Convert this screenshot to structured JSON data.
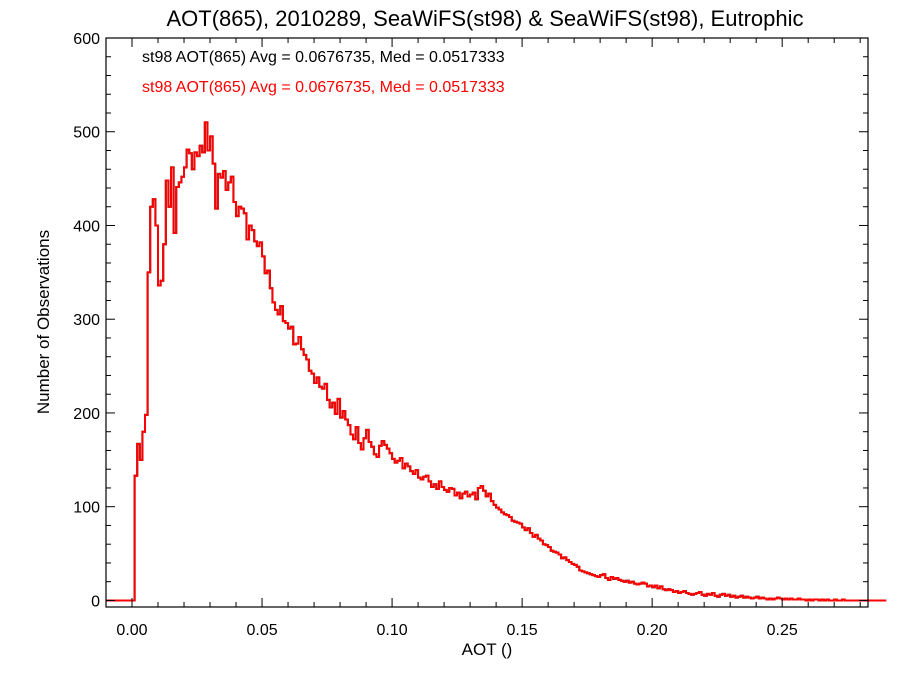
{
  "chart_data": {
    "type": "histogram",
    "title": "AOT(865), 2010289, SeaWiFS(st98) & SeaWiFS(st98), Eutrophic",
    "xlabel": "AOT ()",
    "ylabel": "Number of Observations",
    "xlim": [
      -0.01,
      0.283
    ],
    "ylim": [
      -7,
      600
    ],
    "xticks": [
      0.0,
      0.05,
      0.1,
      0.15,
      0.2,
      0.25
    ],
    "xtick_labels": [
      "0.00",
      "0.05",
      "0.10",
      "0.15",
      "0.20",
      "0.25"
    ],
    "yticks": [
      0,
      100,
      200,
      300,
      400,
      500,
      600
    ],
    "ytick_labels": [
      "0",
      "100",
      "200",
      "300",
      "400",
      "500",
      "600"
    ],
    "grid": false,
    "legend_position": "top-left",
    "bin_start": 0.001,
    "bin_width": 0.001,
    "series": [
      {
        "name": "st98",
        "label": "st98 AOT(865) Avg = 0.0676735, Med = 0.0517333",
        "color": "#000000",
        "values": [
          133,
          167,
          150,
          180,
          198,
          350,
          420,
          428,
          400,
          336,
          341,
          380,
          448,
          420,
          462,
          392,
          441,
          446,
          452,
          462,
          481,
          477,
          460,
          478,
          474,
          485,
          478,
          510,
          480,
          495,
          466,
          418,
          455,
          451,
          458,
          438,
          446,
          452,
          425,
          410,
          420,
          418,
          413,
          385,
          400,
          395,
          383,
          378,
          382,
          367,
          349,
          352,
          333,
          318,
          310,
          305,
          314,
          298,
          296,
          290,
          292,
          273,
          274,
          281,
          268,
          262,
          257,
          245,
          242,
          232,
          238,
          228,
          226,
          231,
          214,
          206,
          211,
          199,
          215,
          195,
          202,
          193,
          187,
          177,
          172,
          185,
          168,
          161,
          173,
          182,
          169,
          164,
          156,
          153,
          165,
          170,
          166,
          162,
          157,
          151,
          147,
          149,
          152,
          141,
          146,
          143,
          138,
          135,
          139,
          131,
          129,
          132,
          133,
          127,
          121,
          124,
          119,
          127,
          121,
          118,
          116,
          120,
          119,
          112,
          115,
          109,
          114,
          116,
          111,
          113,
          115,
          108,
          120,
          122,
          117,
          111,
          114,
          106,
          102,
          99,
          97,
          94,
          92,
          91,
          89,
          85,
          84,
          83,
          82,
          78,
          75,
          77,
          72,
          68,
          70,
          66,
          64,
          60,
          59,
          57,
          53,
          52,
          51,
          49,
          45,
          46,
          43,
          41,
          39,
          38,
          36,
          32,
          31,
          30,
          29,
          28,
          27,
          26,
          25,
          27,
          28,
          24,
          22,
          25,
          23,
          24,
          22,
          21,
          20,
          21,
          19,
          20,
          18,
          17,
          18,
          19,
          18,
          15,
          16,
          14,
          16,
          13,
          15,
          12,
          11,
          12,
          11,
          9,
          10,
          8,
          9,
          10,
          8,
          7,
          6,
          7,
          8,
          9,
          6,
          5,
          7,
          6,
          8,
          5,
          4,
          6,
          7,
          5,
          6,
          4,
          5,
          3,
          4,
          5,
          3,
          4,
          3,
          2,
          3,
          4,
          2,
          3,
          2,
          1,
          2,
          1,
          2,
          3,
          2,
          1,
          2,
          1,
          2,
          1,
          1,
          2,
          1,
          1,
          0,
          1,
          0,
          1,
          1,
          0,
          1,
          0,
          1,
          0,
          0,
          1,
          0,
          0,
          1,
          0,
          0,
          0,
          0,
          0,
          0,
          0,
          0,
          0,
          0,
          0,
          0,
          0,
          0,
          0,
          0,
          0
        ]
      },
      {
        "name": "st98",
        "label": "st98 AOT(865) Avg = 0.0676735, Med = 0.0517333",
        "color": "#ff0000",
        "values": [
          133,
          167,
          150,
          180,
          198,
          350,
          420,
          428,
          400,
          336,
          341,
          380,
          448,
          420,
          462,
          392,
          441,
          446,
          452,
          462,
          481,
          477,
          460,
          478,
          474,
          485,
          478,
          510,
          480,
          495,
          466,
          418,
          455,
          451,
          458,
          438,
          446,
          452,
          425,
          410,
          420,
          418,
          413,
          385,
          400,
          395,
          383,
          378,
          382,
          367,
          349,
          352,
          333,
          318,
          310,
          305,
          314,
          298,
          296,
          290,
          292,
          273,
          274,
          281,
          268,
          262,
          257,
          245,
          242,
          232,
          238,
          228,
          226,
          231,
          214,
          206,
          211,
          199,
          215,
          195,
          202,
          193,
          187,
          177,
          172,
          185,
          168,
          161,
          173,
          182,
          169,
          164,
          156,
          153,
          165,
          170,
          166,
          162,
          157,
          151,
          147,
          149,
          152,
          141,
          146,
          143,
          138,
          135,
          139,
          131,
          129,
          132,
          133,
          127,
          121,
          124,
          119,
          127,
          121,
          118,
          116,
          120,
          119,
          112,
          115,
          109,
          114,
          116,
          111,
          113,
          115,
          108,
          120,
          122,
          117,
          111,
          114,
          106,
          102,
          99,
          97,
          94,
          92,
          91,
          89,
          85,
          84,
          83,
          82,
          78,
          75,
          77,
          72,
          68,
          70,
          66,
          64,
          60,
          59,
          57,
          53,
          52,
          51,
          49,
          45,
          46,
          43,
          41,
          39,
          38,
          36,
          32,
          31,
          30,
          29,
          28,
          27,
          26,
          25,
          27,
          28,
          24,
          22,
          25,
          23,
          24,
          22,
          21,
          20,
          21,
          19,
          20,
          18,
          17,
          18,
          19,
          18,
          15,
          16,
          14,
          16,
          13,
          15,
          12,
          11,
          12,
          11,
          9,
          10,
          8,
          9,
          10,
          8,
          7,
          6,
          7,
          8,
          9,
          6,
          5,
          7,
          6,
          8,
          5,
          4,
          6,
          7,
          5,
          6,
          4,
          5,
          3,
          4,
          5,
          3,
          4,
          3,
          2,
          3,
          4,
          2,
          3,
          2,
          1,
          2,
          1,
          2,
          3,
          2,
          1,
          2,
          1,
          2,
          1,
          1,
          2,
          1,
          1,
          0,
          1,
          0,
          1,
          1,
          0,
          1,
          0,
          1,
          0,
          0,
          1,
          0,
          0,
          1,
          0,
          0,
          0,
          0,
          0,
          0,
          0,
          0,
          0,
          0,
          0,
          0,
          0,
          0,
          0,
          0,
          0
        ]
      }
    ]
  }
}
